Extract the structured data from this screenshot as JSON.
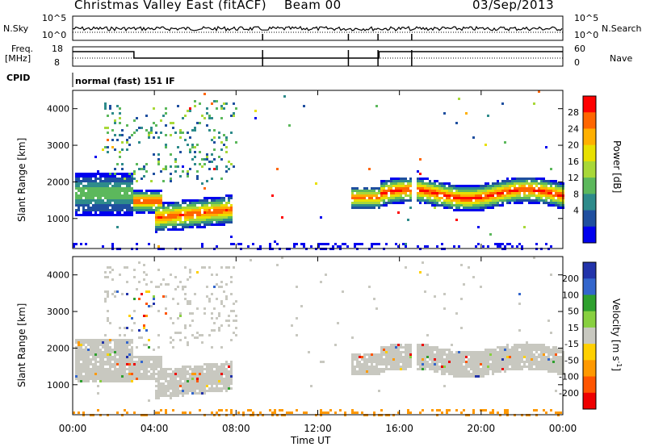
{
  "header": {
    "title": "Christmas Valley East (fitACF)",
    "beam": "Beam 00",
    "date": "03/Sep/2013"
  },
  "top_panels": {
    "nsky_label": "N.Sky",
    "nsearch_label": "N.Search",
    "nsky_ticks": [
      "10^5",
      "10^0"
    ],
    "nsearch_ticks": [
      "10^5",
      "10^0"
    ],
    "freq_label": "Freq.",
    "freq_unit": "[MHz]",
    "freq_ticks": [
      "18",
      "8"
    ],
    "nave_label": "Nave",
    "nave_ticks": [
      "60",
      "0"
    ],
    "cpid_label": "CPID",
    "cpid_text": "normal (fast) 151 IF"
  },
  "chart_data": [
    {
      "type": "heatmap",
      "title": "",
      "xlabel": "Time UT",
      "ylabel": "Slant Range [km]",
      "x_ticks": [
        "00:00",
        "04:00",
        "08:00",
        "12:00",
        "16:00",
        "20:00",
        "00:00"
      ],
      "y_ticks": [
        1000,
        2000,
        3000,
        4000
      ],
      "xlim_hours": [
        0,
        24
      ],
      "ylim": [
        180,
        4500
      ],
      "colorbar": {
        "label": "Power [dB]",
        "ticks": [
          "28",
          "24",
          "20",
          "16",
          "12",
          "8",
          "4"
        ],
        "colors": [
          "#ff0000",
          "#ff6600",
          "#ffb000",
          "#e8e000",
          "#a8d838",
          "#5cb85c",
          "#2e8b8b",
          "#1f4f9f",
          "#0000ee"
        ]
      },
      "bands": [
        {
          "t0": 0.1,
          "t1": 2.9,
          "r": 1700,
          "w": 150,
          "level": 0.45
        },
        {
          "t0": 2.9,
          "t1": 4.3,
          "r": 1500,
          "w": 80,
          "level": 0.95
        },
        {
          "t0": 4.0,
          "t1": 7.8,
          "r": 1050,
          "w": 100,
          "level": 0.9
        },
        {
          "t0": 13.6,
          "t1": 15.0,
          "r": 1600,
          "w": 80,
          "level": 0.85
        },
        {
          "t0": 15.0,
          "t1": 24.0,
          "r": 1700,
          "w": 90,
          "level": 0.95
        }
      ]
    },
    {
      "type": "heatmap",
      "title": "",
      "xlabel": "Time UT",
      "ylabel": "Slant Range [km]",
      "x_ticks": [
        "00:00",
        "04:00",
        "08:00",
        "12:00",
        "16:00",
        "20:00",
        "00:00"
      ],
      "y_ticks": [
        1000,
        2000,
        3000,
        4000
      ],
      "xlim_hours": [
        0,
        24
      ],
      "ylim": [
        180,
        4500
      ],
      "colorbar": {
        "label": "Velocity [m s^-1]",
        "ticks": [
          "200",
          "100",
          "50",
          "15",
          "-15",
          "-50",
          "-100",
          "-200"
        ],
        "colors": [
          "#2233aa",
          "#3366cc",
          "#2ea02e",
          "#88d040",
          "#c8c8c0",
          "#ffd000",
          "#ff9900",
          "#ff5500",
          "#ee0000"
        ]
      }
    }
  ]
}
